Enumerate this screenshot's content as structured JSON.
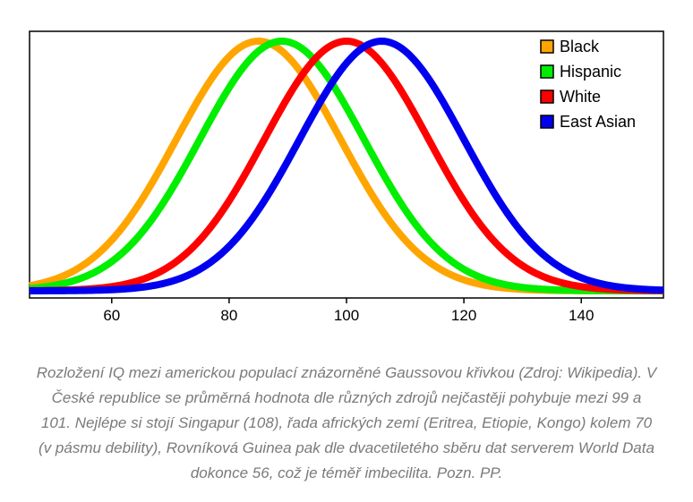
{
  "chart_data": {
    "type": "line",
    "title": "",
    "xlabel": "",
    "ylabel": "",
    "xlim": [
      46,
      154
    ],
    "ylim": [
      0,
      0.0285
    ],
    "x_ticks": [
      60,
      80,
      100,
      120,
      140
    ],
    "grid": false,
    "legend_position": "top-right",
    "series": [
      {
        "name": "Black",
        "color": "#ffa500",
        "mean": 85,
        "sd": 14,
        "x": [
          46,
          55,
          60,
          65,
          70,
          75,
          80,
          85,
          90,
          95,
          100,
          105,
          110,
          115,
          120,
          130,
          140,
          154
        ],
        "y": [
          0.0006,
          0.0029,
          0.0057,
          0.0101,
          0.0159,
          0.0221,
          0.0267,
          0.0285,
          0.0267,
          0.0221,
          0.0159,
          0.0101,
          0.0057,
          0.0029,
          0.0013,
          0.0002,
          0.0,
          0.0
        ]
      },
      {
        "name": "Hispanic",
        "color": "#00ee00",
        "mean": 89,
        "sd": 14,
        "x": [
          46,
          55,
          60,
          65,
          70,
          75,
          80,
          85,
          89,
          95,
          100,
          105,
          110,
          115,
          120,
          130,
          140,
          154
        ],
        "y": [
          0.0002,
          0.0015,
          0.0033,
          0.0065,
          0.0113,
          0.0173,
          0.0232,
          0.0273,
          0.0285,
          0.0258,
          0.0207,
          0.0148,
          0.0093,
          0.0051,
          0.0024,
          0.0004,
          0.0,
          0.0
        ]
      },
      {
        "name": "White",
        "color": "#ff0000",
        "mean": 100,
        "sd": 14,
        "x": [
          46,
          55,
          60,
          65,
          70,
          75,
          80,
          85,
          90,
          95,
          100,
          105,
          110,
          115,
          120,
          130,
          140,
          154
        ],
        "y": [
          0.0,
          0.0001,
          0.0005,
          0.0012,
          0.0029,
          0.0057,
          0.0101,
          0.0159,
          0.0221,
          0.0267,
          0.0285,
          0.0267,
          0.0221,
          0.0159,
          0.0101,
          0.0029,
          0.0005,
          0.0
        ]
      },
      {
        "name": "East Asian",
        "color": "#0000ee",
        "mean": 106,
        "sd": 14,
        "x": [
          46,
          55,
          60,
          65,
          70,
          75,
          80,
          85,
          90,
          95,
          100,
          106,
          110,
          115,
          120,
          130,
          140,
          154
        ],
        "y": [
          0.0,
          0.0,
          0.0001,
          0.0004,
          0.001,
          0.0024,
          0.0051,
          0.0093,
          0.0148,
          0.0207,
          0.0258,
          0.0285,
          0.0273,
          0.0232,
          0.0173,
          0.0065,
          0.0015,
          0.0001
        ]
      }
    ]
  },
  "caption": "Rozložení IQ mezi americkou populací znázorněné Gaussovou křivkou (Zdroj: Wikipedia). V České republice se průměrná hodnota dle různých zdrojů nejčastěji pohybuje mezi 99 a 101. Nejlépe si stojí Singapur (108), řada afrických zemí (Eritrea, Etiopie, Kongo) kolem 70 (v pásmu debility), Rovníková Guinea pak dle dvacetiletého sběru dat serverem World Data dokonce 56, což je téměř imbecilita. Pozn. PP."
}
